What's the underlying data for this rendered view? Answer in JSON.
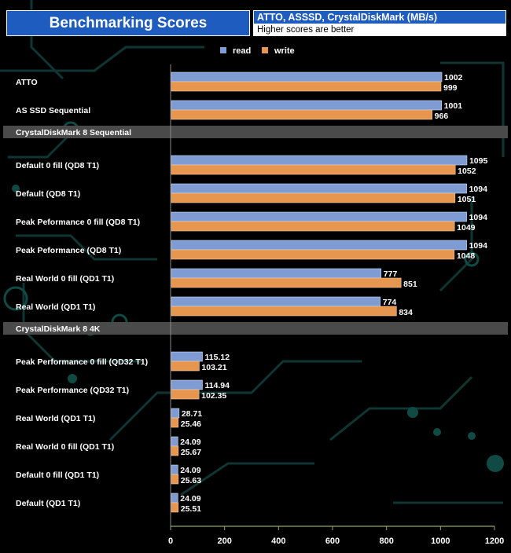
{
  "header": {
    "title": "Benchmarking Scores",
    "subtitle": "ATTO, ASSSD, CrystalDiskMark (MB/s)",
    "note": "Higher scores are better"
  },
  "colors": {
    "read": "#7f9bd4",
    "write": "#e6964f",
    "section": "#4a4a4a"
  },
  "chart_data": {
    "type": "bar",
    "orientation": "horizontal",
    "title": "Benchmarking Scores",
    "subtitle": "ATTO, ASSSD, CrystalDiskMark (MB/s)",
    "xlim": [
      0,
      1200
    ],
    "xticks": [
      0,
      200,
      400,
      600,
      800,
      1000,
      1200
    ],
    "legend": [
      {
        "key": "read",
        "label": "read"
      },
      {
        "key": "write",
        "label": "write"
      }
    ],
    "rows": [
      {
        "kind": "bar",
        "label": "ATTO",
        "read": 1002,
        "write": 999,
        "read_label": "1002",
        "write_label": "999"
      },
      {
        "kind": "bar",
        "label": "AS SSD Sequential",
        "read": 1001,
        "write": 966,
        "read_label": "1001",
        "write_label": "966"
      },
      {
        "kind": "section",
        "label": "CrystalDiskMark 8 Sequential"
      },
      {
        "kind": "bar",
        "label": "Default 0 fill (QD8 T1)",
        "read": 1095,
        "write": 1052,
        "read_label": "1095",
        "write_label": "1052"
      },
      {
        "kind": "bar",
        "label": "Default (QD8 T1)",
        "read": 1094,
        "write": 1051,
        "read_label": "1094",
        "write_label": "1051"
      },
      {
        "kind": "bar",
        "label": "Peak Peformance 0 fill (QD8 T1)",
        "read": 1094,
        "write": 1049,
        "read_label": "1094",
        "write_label": "1049"
      },
      {
        "kind": "bar",
        "label": "Peak Peformance (QD8 T1)",
        "read": 1094,
        "write": 1048,
        "read_label": "1094",
        "write_label": "1048"
      },
      {
        "kind": "bar",
        "label": "Real World 0 fill (QD1 T1)",
        "read": 777,
        "write": 851,
        "read_label": "777",
        "write_label": "851"
      },
      {
        "kind": "bar",
        "label": "Real World (QD1 T1)",
        "read": 774,
        "write": 834,
        "read_label": "774",
        "write_label": "834"
      },
      {
        "kind": "section",
        "label": "CrystalDiskMark 8 4K"
      },
      {
        "kind": "bar",
        "label": "Peak Performance 0 fill (QD32 T1)",
        "read": 115.12,
        "write": 103.21,
        "read_label": "115.12",
        "write_label": "103.21"
      },
      {
        "kind": "bar",
        "label": "Peak Performance (QD32 T1)",
        "read": 114.94,
        "write": 102.35,
        "read_label": "114.94",
        "write_label": "102.35"
      },
      {
        "kind": "bar",
        "label": "Real World  (QD1 T1)",
        "read": 28.71,
        "write": 25.46,
        "read_label": "28.71",
        "write_label": "25.46"
      },
      {
        "kind": "bar",
        "label": "Real World 0 fill  (QD1 T1)",
        "read": 24.09,
        "write": 25.67,
        "read_label": "24.09",
        "write_label": "25.67"
      },
      {
        "kind": "bar",
        "label": "Default 0 fill (QD1 T1)",
        "read": 24.09,
        "write": 25.63,
        "read_label": "24.09",
        "write_label": "25.63"
      },
      {
        "kind": "bar",
        "label": "Default (QD1 T1)",
        "read": 24.09,
        "write": 25.51,
        "read_label": "24.09",
        "write_label": "25.51"
      }
    ]
  }
}
